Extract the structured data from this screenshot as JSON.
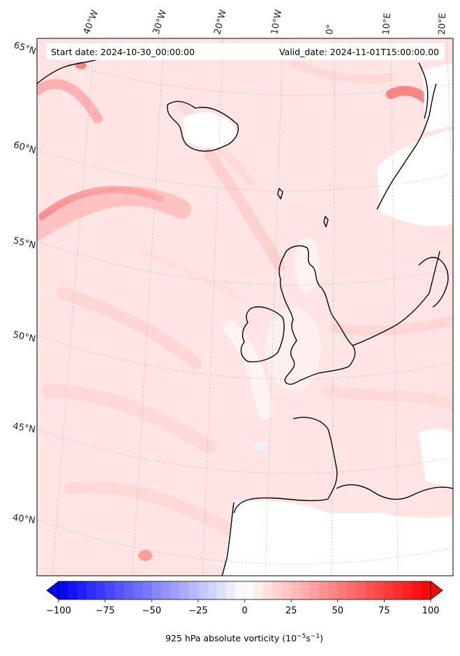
{
  "header": {
    "start_date": "Start date: 2024-10-30_00:00:00",
    "valid_date": "Valid_date: 2024-11-01T15:00:00.00"
  },
  "longitude_labels": [
    "40°W",
    "30°W",
    "20°W",
    "10°W",
    "0°",
    "10°E",
    "20°E"
  ],
  "latitude_labels": [
    "65°N",
    "60°N",
    "55°N",
    "50°N",
    "45°N",
    "40°N"
  ],
  "colorbar": {
    "label": "925 hPa absolute vorticity (10",
    "label_exp1": "−5",
    "label_mid": "s",
    "label_exp2": "−1",
    "label_end": ")",
    "min": -100,
    "max": 100,
    "ticks": [
      "−100",
      "−75",
      "−50",
      "−25",
      "0",
      "25",
      "50",
      "75",
      "100"
    ],
    "levels": 40,
    "colormap": "bwr",
    "extend": "both"
  },
  "colors": {
    "negative_end": "#0000ff",
    "zero": "#ffffff",
    "positive_end": "#ff0000",
    "coastline": "#000000"
  }
}
